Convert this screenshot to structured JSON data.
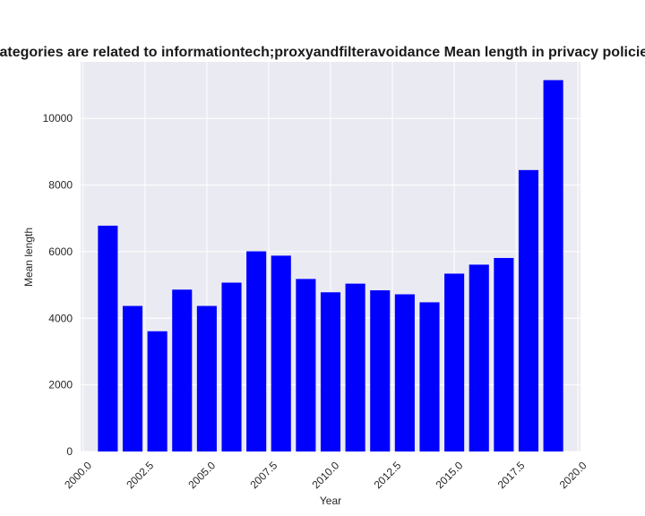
{
  "chart_data": {
    "type": "bar",
    "title": "Categories are related to informationtech;proxyandfilteravoidance Mean length in privacy policies",
    "xlabel": "Year",
    "ylabel": "Mean length",
    "x": [
      2001,
      2002,
      2003,
      2004,
      2005,
      2006,
      2007,
      2008,
      2009,
      2010,
      2011,
      2012,
      2013,
      2014,
      2015,
      2016,
      2017,
      2018,
      2019
    ],
    "values": [
      6780,
      4370,
      3610,
      4860,
      4370,
      5070,
      6010,
      5880,
      5180,
      4780,
      5040,
      4840,
      4720,
      4480,
      5340,
      5610,
      5810,
      8450,
      11150
    ],
    "xlim": [
      1999.9,
      2020.1
    ],
    "ylim": [
      0,
      11700
    ],
    "xticks": [
      2000.0,
      2002.5,
      2005.0,
      2007.5,
      2010.0,
      2012.5,
      2015.0,
      2017.5,
      2020.0
    ],
    "xtick_labels": [
      "2000.0",
      "2002.5",
      "2005.0",
      "2007.5",
      "2010.0",
      "2012.5",
      "2015.0",
      "2017.5",
      "2020.0"
    ],
    "yticks": [
      0,
      2000,
      4000,
      6000,
      8000,
      10000
    ],
    "ytick_labels": [
      "0",
      "2000",
      "4000",
      "6000",
      "8000",
      "10000"
    ],
    "bar_color": "#0000ff",
    "background": "#eaeaf2",
    "grid": true
  }
}
